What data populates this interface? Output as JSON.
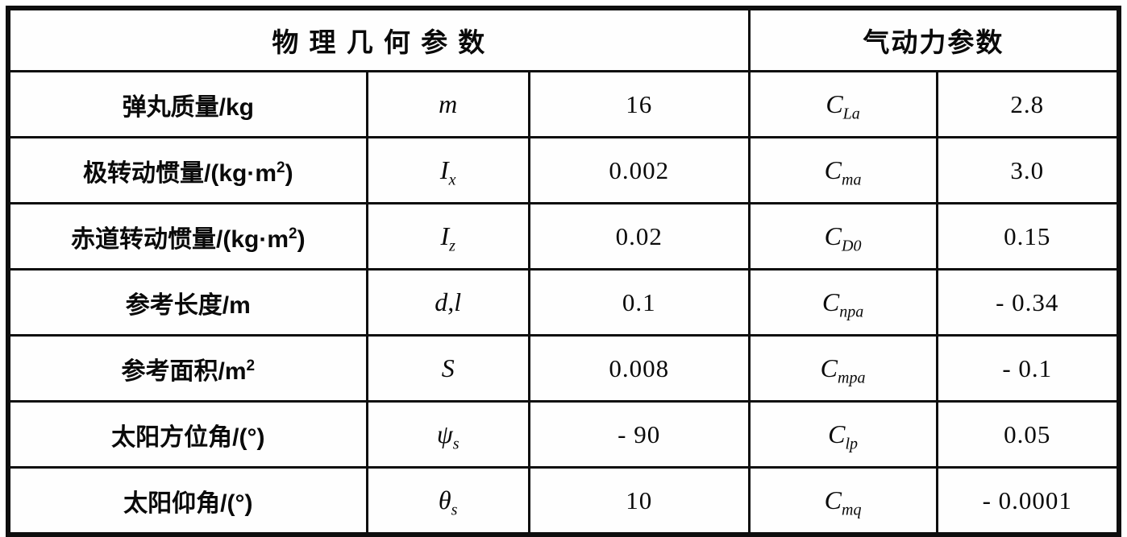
{
  "table": {
    "header": {
      "physical": "物  理  几  何  参  数",
      "aero": "气动力参数"
    },
    "rows": [
      {
        "label_pre": "弹丸质量/kg",
        "label_sup": "",
        "label_post": "",
        "sym_main": "m",
        "sym_sub": "",
        "value": "16",
        "aero_main": "C",
        "aero_sub": "La",
        "aero_value": "2.8"
      },
      {
        "label_pre": "极转动惯量/(kg·m",
        "label_sup": "2",
        "label_post": ")",
        "sym_main": "I",
        "sym_sub": "x",
        "value": "0.002",
        "aero_main": "C",
        "aero_sub": "ma",
        "aero_value": "3.0"
      },
      {
        "label_pre": "赤道转动惯量/(kg·m",
        "label_sup": "2",
        "label_post": ")",
        "sym_main": "I",
        "sym_sub": "z",
        "value": "0.02",
        "aero_main": "C",
        "aero_sub": "D0",
        "aero_value": "0.15"
      },
      {
        "label_pre": "参考长度/m",
        "label_sup": "",
        "label_post": "",
        "sym_main": "d,l",
        "sym_sub": "",
        "value": "0.1",
        "aero_main": "C",
        "aero_sub": "npa",
        "aero_value": "- 0.34"
      },
      {
        "label_pre": "参考面积/m",
        "label_sup": "2",
        "label_post": "",
        "sym_main": "S",
        "sym_sub": "",
        "value": "0.008",
        "aero_main": "C",
        "aero_sub": "mpa",
        "aero_value": "- 0.1"
      },
      {
        "label_pre": "太阳方位角/(°)",
        "label_sup": "",
        "label_post": "",
        "sym_main": "ψ",
        "sym_sub": "s",
        "value": "- 90",
        "aero_main": "C",
        "aero_sub": "lp",
        "aero_value": "0.05"
      },
      {
        "label_pre": "太阳仰角/(°)",
        "label_sup": "",
        "label_post": "",
        "sym_main": "θ",
        "sym_sub": "s",
        "value": "10",
        "aero_main": "C",
        "aero_sub": "mq",
        "aero_value": "- 0.0001"
      }
    ]
  }
}
